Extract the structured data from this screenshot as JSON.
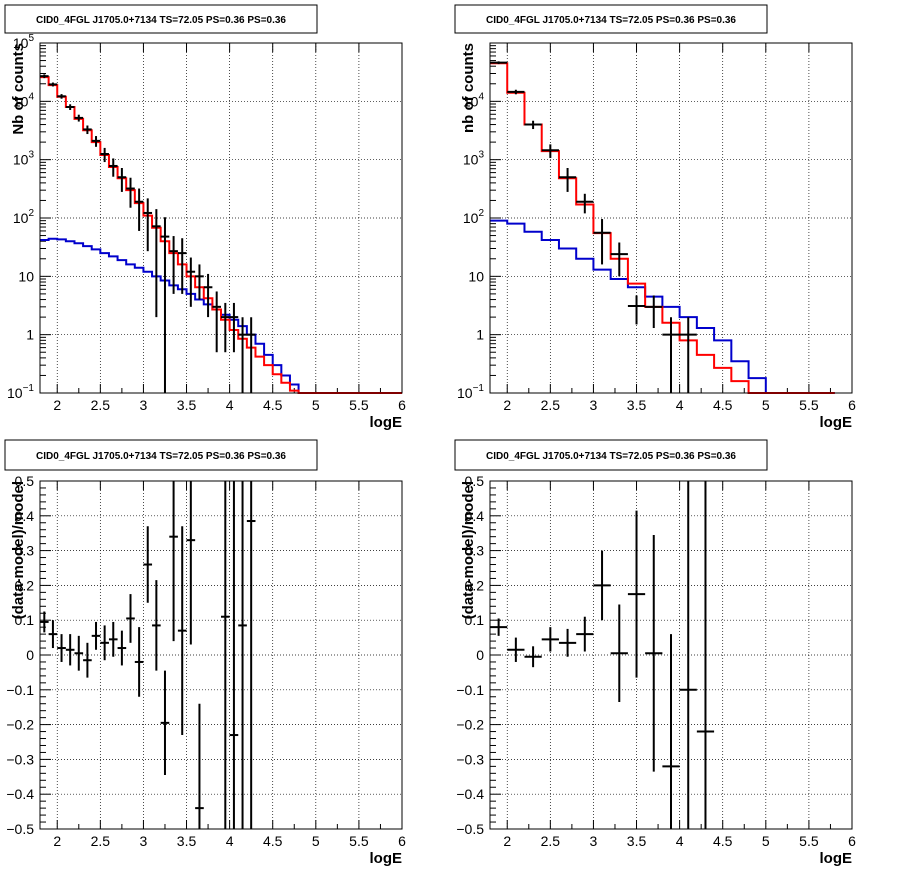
{
  "colors": {
    "data": "#000000",
    "model": "#ff0000",
    "background": "#0000cc"
  },
  "chart_data": [
    {
      "type": "line",
      "title": "CID0_4FGL J1705.0+7134 TS=72.05 PS=0.36 PS=0.36",
      "xlabel": "logE",
      "ylabel": "Nb of counts",
      "yscale": "log",
      "xlim": [
        1.8,
        6.0
      ],
      "ylim": [
        0.1,
        100000
      ],
      "grid": true,
      "x_ticks": [
        2,
        2.5,
        3,
        3.5,
        4,
        4.5,
        5,
        5.5,
        6
      ],
      "x_tick_labels": [
        "2",
        "2.5",
        "3",
        "3.5",
        "4",
        "4.5",
        "5",
        "5.5",
        "6"
      ],
      "y_ticks": [
        0.1,
        1,
        10,
        100,
        1000,
        10000,
        100000
      ],
      "y_tick_labels": [
        {
          "base": "10",
          "exp": "−1"
        },
        {
          "base": "1",
          "exp": ""
        },
        {
          "base": "10",
          "exp": ""
        },
        {
          "base": "10",
          "exp": "2"
        },
        {
          "base": "10",
          "exp": "3"
        },
        {
          "base": "10",
          "exp": "4"
        },
        {
          "base": "10",
          "exp": "5"
        }
      ],
      "bin_edges": [
        1.8,
        1.9,
        2.0,
        2.1,
        2.2,
        2.3,
        2.4,
        2.5,
        2.6,
        2.7,
        2.8,
        2.9,
        3.0,
        3.1,
        3.2,
        3.3,
        3.4,
        3.5,
        3.6,
        3.7,
        3.8,
        3.9,
        4.0,
        4.1,
        4.2,
        4.3,
        4.4,
        4.5,
        4.6,
        4.7,
        4.8,
        4.9,
        5.0,
        5.1,
        5.2,
        5.3,
        5.4,
        5.5,
        5.6,
        5.7,
        5.8,
        5.9,
        6.0
      ],
      "series": [
        {
          "role": "model",
          "color": "#ff0000",
          "values": [
            26000,
            19000,
            12000,
            8000,
            5000,
            3200,
            2000,
            1200,
            750,
            480,
            300,
            180,
            110,
            68,
            40,
            25,
            16,
            10,
            6.5,
            4.2,
            2.7,
            1.8,
            1.2,
            0.85,
            0.6,
            0.42,
            0.3,
            0.21,
            0.15,
            0.11,
            0.1,
            0.1,
            0.1,
            0.1,
            0.1,
            0.1,
            0.1,
            0.1,
            0.1,
            0.1,
            0.1,
            0.1
          ]
        },
        {
          "role": "background",
          "color": "#0000cc",
          "values": [
            42,
            44,
            43,
            40,
            37,
            33,
            29,
            25,
            22,
            19,
            16,
            14,
            12,
            10,
            8.5,
            7,
            6,
            5,
            4,
            3.3,
            2.7,
            2.2,
            1.8,
            1.4,
            1.0,
            0.7,
            0.45,
            0.3,
            0.2,
            0.14,
            0.1,
            0.1,
            0.1,
            0.1,
            0.1,
            0.1,
            0.1,
            0.1,
            0.1,
            0.1,
            0.1,
            0.1
          ]
        },
        {
          "role": "data",
          "color": "#000000",
          "kind": "points",
          "points": [
            [
              1.85,
              27000,
              2000
            ],
            [
              1.95,
              19500,
              1500
            ],
            [
              2.05,
              12200,
              1100
            ],
            [
              2.15,
              8000,
              900
            ],
            [
              2.25,
              5200,
              700
            ],
            [
              2.35,
              3300,
              550
            ],
            [
              2.45,
              2100,
              440
            ],
            [
              2.55,
              1250,
              340
            ],
            [
              2.65,
              780,
              270
            ],
            [
              2.75,
              500,
              220
            ],
            [
              2.85,
              320,
              170
            ],
            [
              2.95,
              190,
              130
            ],
            [
              3.05,
              122,
              95
            ],
            [
              3.15,
              72,
              70
            ],
            [
              3.25,
              48,
              55
            ],
            [
              3.35,
              27,
              22
            ],
            [
              3.45,
              25,
              20
            ],
            [
              3.55,
              12,
              9
            ],
            [
              3.65,
              10,
              6
            ],
            [
              3.75,
              6.5,
              4.5
            ],
            [
              3.85,
              3,
              2.5
            ],
            [
              3.95,
              2,
              1.5
            ],
            [
              4.05,
              2,
              1.5
            ],
            [
              4.15,
              1,
              0.99
            ],
            [
              4.25,
              1,
              0.99
            ]
          ]
        }
      ]
    },
    {
      "type": "line",
      "title": "CID0_4FGL J1705.0+7134 TS=72.05 PS=0.36 PS=0.36",
      "xlabel": "logE",
      "ylabel": "nb of counts",
      "yscale": "log",
      "xlim": [
        1.8,
        6.0
      ],
      "ylim": [
        0.1,
        100000
      ],
      "grid": true,
      "x_ticks": [
        2,
        2.5,
        3,
        3.5,
        4,
        4.5,
        5,
        5.5,
        6
      ],
      "x_tick_labels": [
        "2",
        "2.5",
        "3",
        "3.5",
        "4",
        "4.5",
        "5",
        "5.5",
        "6"
      ],
      "y_ticks": [
        0.1,
        1,
        10,
        100,
        1000,
        10000
      ],
      "y_tick_labels": [
        {
          "base": "10",
          "exp": "−1"
        },
        {
          "base": "1",
          "exp": ""
        },
        {
          "base": "10",
          "exp": ""
        },
        {
          "base": "10",
          "exp": "2"
        },
        {
          "base": "10",
          "exp": "3"
        },
        {
          "base": "10",
          "exp": "4"
        }
      ],
      "bin_edges": [
        1.8,
        2.0,
        2.2,
        2.4,
        2.6,
        2.8,
        3.0,
        3.2,
        3.4,
        3.6,
        3.8,
        4.0,
        4.2,
        4.4,
        4.6,
        4.8,
        5.0,
        5.2,
        5.4,
        5.6,
        5.8,
        6.0
      ],
      "series": [
        {
          "role": "model",
          "color": "#ff0000",
          "values": [
            45000,
            14000,
            4000,
            1400,
            480,
            170,
            55,
            20,
            7.5,
            3,
            1.6,
            0.8,
            0.45,
            0.27,
            0.16,
            0.1,
            0.1,
            0.1,
            0.1,
            0.1
          ]
        },
        {
          "role": "background",
          "color": "#0000cc",
          "values": [
            90,
            80,
            58,
            42,
            30,
            20,
            13,
            9,
            6.5,
            4.5,
            3,
            2,
            1.3,
            0.8,
            0.35,
            0.18,
            0.1,
            0.1,
            0.1,
            0.1
          ]
        },
        {
          "role": "data",
          "color": "#000000",
          "kind": "points",
          "points": [
            [
              1.9,
              46000,
              2500
            ],
            [
              2.1,
              14500,
              1300
            ],
            [
              2.3,
              4000,
              650
            ],
            [
              2.5,
              1450,
              380
            ],
            [
              2.7,
              500,
              220
            ],
            [
              2.9,
              190,
              70
            ],
            [
              3.1,
              56,
              40
            ],
            [
              3.3,
              24,
              14
            ],
            [
              3.5,
              3.1,
              1.6
            ],
            [
              3.7,
              3,
              1.7
            ],
            [
              3.9,
              1,
              0.99
            ],
            [
              4.1,
              1,
              0.99
            ]
          ]
        }
      ]
    },
    {
      "type": "scatter",
      "title": "CID0_4FGL J1705.0+7134 TS=72.05 PS=0.36 PS=0.36",
      "xlabel": "logE",
      "ylabel": "(data-model)/model",
      "xlim": [
        1.8,
        6.0
      ],
      "ylim": [
        -0.5,
        0.5
      ],
      "grid": true,
      "x_ticks": [
        2,
        2.5,
        3,
        3.5,
        4,
        4.5,
        5,
        5.5,
        6
      ],
      "x_tick_labels": [
        "2",
        "2.5",
        "3",
        "3.5",
        "4",
        "4.5",
        "5",
        "5.5",
        "6"
      ],
      "y_ticks": [
        -0.5,
        -0.4,
        -0.3,
        -0.2,
        -0.1,
        0,
        0.1,
        0.2,
        0.3,
        0.4,
        0.5
      ],
      "y_tick_labels": [
        "−0.5",
        "−0.4",
        "−0.3",
        "−0.2",
        "−0.1",
        "0",
        "0.1",
        "0.2",
        "0.3",
        "0.4",
        "0.5"
      ],
      "xerr": 0.05,
      "points": [
        [
          1.85,
          0.095,
          0.03
        ],
        [
          1.95,
          0.06,
          0.04
        ],
        [
          2.05,
          0.02,
          0.04
        ],
        [
          2.15,
          0.015,
          0.045
        ],
        [
          2.25,
          0.005,
          0.05
        ],
        [
          2.35,
          -0.015,
          0.05
        ],
        [
          2.45,
          0.055,
          0.04
        ],
        [
          2.55,
          0.035,
          0.05
        ],
        [
          2.65,
          0.045,
          0.05
        ],
        [
          2.75,
          0.02,
          0.05
        ],
        [
          2.85,
          0.105,
          0.07
        ],
        [
          2.95,
          -0.02,
          0.1
        ],
        [
          3.05,
          0.26,
          0.11
        ],
        [
          3.15,
          0.085,
          0.13
        ],
        [
          3.25,
          -0.195,
          0.15
        ],
        [
          3.35,
          0.34,
          0.3
        ],
        [
          3.45,
          0.07,
          0.3
        ],
        [
          3.55,
          0.33,
          0.3
        ],
        [
          3.65,
          -0.44,
          0.3
        ],
        [
          3.95,
          0.11,
          0.7
        ],
        [
          4.05,
          -0.23,
          0.9
        ],
        [
          4.15,
          0.085,
          0.9
        ],
        [
          4.25,
          0.385,
          1.0
        ]
      ]
    },
    {
      "type": "scatter",
      "title": "CID0_4FGL J1705.0+7134 TS=72.05 PS=0.36 PS=0.36",
      "xlabel": "logE",
      "ylabel": "(data-model)/model",
      "xlim": [
        1.8,
        6.0
      ],
      "ylim": [
        -0.5,
        0.5
      ],
      "grid": true,
      "x_ticks": [
        2,
        2.5,
        3,
        3.5,
        4,
        4.5,
        5,
        5.5,
        6
      ],
      "x_tick_labels": [
        "2",
        "2.5",
        "3",
        "3.5",
        "4",
        "4.5",
        "5",
        "5.5",
        "6"
      ],
      "y_ticks": [
        -0.5,
        -0.4,
        -0.3,
        -0.2,
        -0.1,
        0,
        0.1,
        0.2,
        0.3,
        0.4,
        0.5
      ],
      "y_tick_labels": [
        "−0.5",
        "−0.4",
        "−0.3",
        "−0.2",
        "−0.1",
        "0",
        "0.1",
        "0.2",
        "0.3",
        "0.4",
        "0.5"
      ],
      "xerr": 0.1,
      "points": [
        [
          1.9,
          0.08,
          0.025
        ],
        [
          2.1,
          0.015,
          0.035
        ],
        [
          2.3,
          -0.005,
          0.03
        ],
        [
          2.5,
          0.045,
          0.035
        ],
        [
          2.7,
          0.035,
          0.04
        ],
        [
          2.9,
          0.06,
          0.05
        ],
        [
          3.1,
          0.2,
          0.1
        ],
        [
          3.3,
          0.005,
          0.14
        ],
        [
          3.5,
          0.175,
          0.24
        ],
        [
          3.7,
          0.005,
          0.34
        ],
        [
          3.9,
          -0.32,
          0.38
        ],
        [
          4.1,
          -0.1,
          0.9
        ],
        [
          4.3,
          -0.22,
          0.9
        ]
      ]
    }
  ]
}
